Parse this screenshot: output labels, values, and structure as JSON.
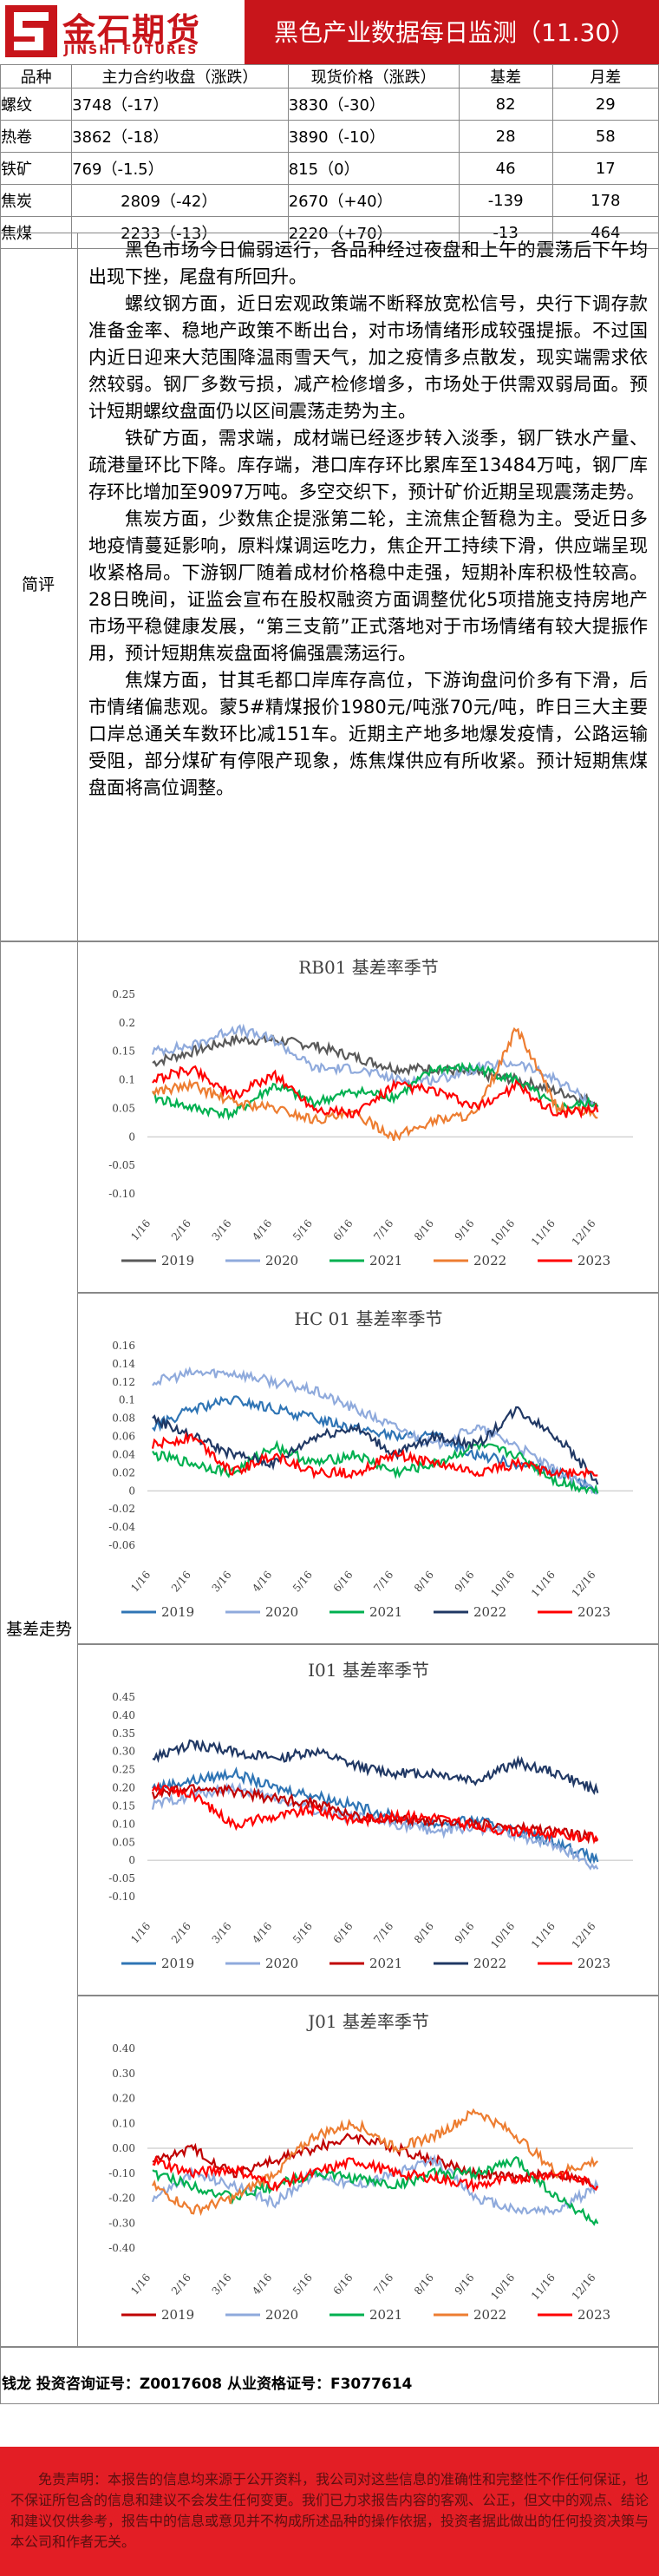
{
  "header": {
    "logo_cn": "金石期货",
    "logo_en": "JINSHI FUTURES",
    "title": "黑色产业数据每日监测（11.30）",
    "brand_color": "#c8151b"
  },
  "table": {
    "headers": [
      "品种",
      "主力合约收盘（涨跌）",
      "现货价格（涨跌）",
      "基差",
      "月差"
    ],
    "rows": [
      {
        "name": "螺纹",
        "futures": "3748（-17）",
        "spot": "3830（-30）",
        "basis": "82",
        "month_spread": "29"
      },
      {
        "name": "热卷",
        "futures": "3862（-18）",
        "spot": "3890（-10）",
        "basis": "28",
        "month_spread": "58"
      },
      {
        "name": "铁矿",
        "futures": "769（-1.5）",
        "spot": "815（0）",
        "basis": "46",
        "month_spread": "17"
      },
      {
        "name": "焦炭",
        "futures": "2809（-42）",
        "spot": "2670（+40）",
        "basis": "-139",
        "month_spread": "178"
      },
      {
        "name": "焦煤",
        "futures": "2233（-13）",
        "spot": "2220（+70）",
        "basis": "-13",
        "month_spread": "464"
      }
    ]
  },
  "comment": {
    "label": "简评",
    "paragraphs": [
      "黑色市场今日偏弱运行，各品种经过夜盘和上午的震荡后下午均出现下挫，尾盘有所回升。",
      "螺纹钢方面，近日宏观政策端不断释放宽松信号，央行下调存款准备金率、稳地产政策不断出台，对市场情绪形成较强提振。不过国内近日迎来大范围降温雨雪天气，加之疫情多点散发，现实端需求依然较弱。钢厂多数亏损，减产检修增多，市场处于供需双弱局面。预计短期螺纹盘面仍以区间震荡走势为主。",
      "铁矿方面，需求端，成材端已经逐步转入淡季，钢厂铁水产量、疏港量环比下降。库存端，港口库存环比累库至13484万吨，钢厂库存环比增加至9097万吨。多空交织下，预计矿价近期呈现震荡走势。",
      "焦炭方面，少数焦企提涨第二轮，主流焦企暂稳为主。受近日多地疫情蔓延影响，原料煤调运吃力，焦企开工持续下滑，供应端呈现收紧格局。下游钢厂随着成材价格稳中走强，短期补库积极性较高。28日晚间，证监会宣布在股权融资方面调整优化5项措施支持房地产市场平稳健康发展，“第三支箭”正式落地对于市场情绪有较大提振作用，预计短期焦炭盘面将偏强震荡运行。",
      "焦煤方面，甘其毛都口岸库存高位，下游询盘问价多有下滑，后市情绪偏悲观。蒙5#精煤报价1980元/吨涨70元/吨，昨日三大主要口岸总通关车数环比减151车。近期主产地多地爆发疫情，公路运输受阻，部分煤矿有停限产现象，炼焦煤供应有所收紧。预计短期焦煤盘面将高位调整。"
    ]
  },
  "basis_section": {
    "label": "基差走势"
  },
  "chart_data": [
    {
      "type": "line",
      "title": "RB01 基差率季节",
      "x": [
        "1/16",
        "2/16",
        "3/16",
        "4/16",
        "5/16",
        "6/16",
        "7/16",
        "8/16",
        "9/16",
        "10/16",
        "11/16",
        "12/16"
      ],
      "yticks": [
        "0.25",
        "0.2",
        "0.15",
        "0.1",
        "0.05",
        "0",
        "-0.05",
        "-0.10"
      ],
      "ylim": [
        -0.1,
        0.25
      ],
      "series": [
        {
          "name": "2019",
          "color": "#595959",
          "values": [
            0.13,
            0.15,
            0.17,
            0.17,
            0.16,
            0.14,
            0.12,
            0.12,
            0.11,
            0.1,
            0.08,
            0.06
          ]
        },
        {
          "name": "2020",
          "color": "#8faadc",
          "values": [
            0.15,
            0.16,
            0.19,
            0.17,
            0.12,
            0.12,
            0.1,
            0.1,
            0.12,
            0.13,
            0.1,
            0.05
          ]
        },
        {
          "name": "2021",
          "color": "#00b050",
          "values": [
            0.07,
            0.05,
            0.04,
            0.09,
            0.06,
            0.08,
            0.07,
            0.12,
            0.12,
            0.1,
            0.05,
            0.06
          ]
        },
        {
          "name": "2022",
          "color": "#ed7d31",
          "values": [
            0.08,
            0.09,
            0.06,
            0.05,
            0.03,
            0.04,
            0.0,
            0.03,
            0.04,
            0.19,
            0.05,
            0.04
          ]
        },
        {
          "name": "2023",
          "color": "#ff0000",
          "values": [
            0.1,
            0.12,
            0.07,
            0.11,
            0.05,
            0.04,
            0.09,
            0.08,
            0.05,
            0.09,
            0.04,
            0.05
          ]
        }
      ]
    },
    {
      "type": "line",
      "title": "HC 01 基差率季节",
      "x": [
        "1/16",
        "2/16",
        "3/16",
        "4/16",
        "5/16",
        "6/16",
        "7/16",
        "8/16",
        "9/16",
        "10/16",
        "11/16",
        "12/16"
      ],
      "yticks": [
        "0.16",
        "0.14",
        "0.12",
        "0.1",
        "0.08",
        "0.06",
        "0.04",
        "0.02",
        "0",
        "-0.02",
        "-0.04",
        "-0.06"
      ],
      "ylim": [
        -0.06,
        0.16
      ],
      "series": [
        {
          "name": "2019",
          "color": "#2f75b5",
          "values": [
            0.07,
            0.09,
            0.1,
            0.09,
            0.08,
            0.07,
            0.06,
            0.06,
            0.04,
            0.03,
            0.02,
            0.0
          ]
        },
        {
          "name": "2020",
          "color": "#8faadc",
          "values": [
            0.12,
            0.13,
            0.13,
            0.12,
            0.11,
            0.09,
            0.07,
            0.05,
            0.07,
            0.05,
            0.02,
            0.0
          ]
        },
        {
          "name": "2021",
          "color": "#00b050",
          "values": [
            0.04,
            0.03,
            0.02,
            0.05,
            0.03,
            0.04,
            0.02,
            0.03,
            0.05,
            0.04,
            0.01,
            0.0
          ]
        },
        {
          "name": "2022",
          "color": "#203864",
          "values": [
            0.08,
            0.06,
            0.04,
            0.03,
            0.06,
            0.07,
            0.04,
            0.06,
            0.05,
            0.09,
            0.06,
            0.01
          ]
        },
        {
          "name": "2023",
          "color": "#ff0000",
          "values": [
            0.05,
            0.06,
            0.02,
            0.04,
            0.02,
            0.02,
            0.04,
            0.03,
            0.02,
            0.03,
            0.02,
            0.02
          ]
        }
      ]
    },
    {
      "type": "line",
      "title": "I01 基差率季节",
      "x": [
        "1/16",
        "2/16",
        "3/16",
        "4/16",
        "5/16",
        "6/16",
        "7/16",
        "8/16",
        "9/16",
        "10/16",
        "11/16",
        "12/16"
      ],
      "yticks": [
        "0.45",
        "0.40",
        "0.35",
        "0.30",
        "0.25",
        "0.20",
        "0.15",
        "0.10",
        "0.05",
        "0",
        "-0.05",
        "-0.10"
      ],
      "ylim": [
        -0.1,
        0.45
      ],
      "series": [
        {
          "name": "2019",
          "color": "#2f75b5",
          "values": [
            0.2,
            0.22,
            0.24,
            0.2,
            0.18,
            0.15,
            0.12,
            0.1,
            0.11,
            0.08,
            0.05,
            0.0
          ]
        },
        {
          "name": "2020",
          "color": "#8faadc",
          "values": [
            0.15,
            0.18,
            0.2,
            0.17,
            0.14,
            0.12,
            0.1,
            0.08,
            0.09,
            0.07,
            0.04,
            -0.02
          ]
        },
        {
          "name": "2021",
          "color": "#c00000",
          "values": [
            0.18,
            0.2,
            0.19,
            0.17,
            0.16,
            0.12,
            0.11,
            0.11,
            0.1,
            0.09,
            0.08,
            0.06
          ]
        },
        {
          "name": "2022",
          "color": "#203864",
          "values": [
            0.28,
            0.32,
            0.3,
            0.28,
            0.3,
            0.26,
            0.24,
            0.24,
            0.22,
            0.27,
            0.24,
            0.19
          ]
        },
        {
          "name": "2023",
          "color": "#ff0000",
          "values": [
            0.2,
            0.18,
            0.1,
            0.12,
            0.14,
            0.11,
            0.12,
            0.12,
            0.09,
            0.08,
            0.07,
            0.06
          ]
        }
      ]
    },
    {
      "type": "line",
      "title": "J01 基差率季节",
      "x": [
        "1/16",
        "2/16",
        "3/16",
        "4/16",
        "5/16",
        "6/16",
        "7/16",
        "8/16",
        "9/16",
        "10/16",
        "11/16",
        "12/16"
      ],
      "yticks": [
        "0.40",
        "0.30",
        "0.20",
        "0.10",
        "0.00",
        "-0.10",
        "-0.20",
        "-0.30",
        "-0.40"
      ],
      "ylim": [
        -0.4,
        0.4
      ],
      "series": [
        {
          "name": "2019",
          "color": "#c00000",
          "values": [
            -0.05,
            0.0,
            -0.1,
            -0.05,
            0.0,
            0.05,
            0.0,
            -0.05,
            -0.1,
            -0.12,
            -0.1,
            -0.15
          ]
        },
        {
          "name": "2020",
          "color": "#8faadc",
          "values": [
            -0.2,
            -0.1,
            -0.15,
            -0.22,
            -0.1,
            -0.15,
            -0.1,
            -0.05,
            -0.2,
            -0.25,
            -0.25,
            -0.15
          ]
        },
        {
          "name": "2021",
          "color": "#00b050",
          "values": [
            -0.1,
            -0.15,
            -0.2,
            -0.15,
            -0.1,
            -0.12,
            -0.15,
            -0.1,
            -0.1,
            -0.05,
            -0.2,
            -0.3
          ]
        },
        {
          "name": "2022",
          "color": "#ed7d31",
          "values": [
            -0.15,
            -0.25,
            -0.2,
            -0.1,
            0.05,
            0.1,
            0.0,
            0.05,
            0.15,
            0.05,
            -0.1,
            -0.05
          ]
        },
        {
          "name": "2023",
          "color": "#ff0000",
          "values": [
            -0.05,
            -0.1,
            -0.08,
            -0.15,
            -0.1,
            -0.05,
            -0.1,
            -0.12,
            -0.15,
            -0.12,
            -0.1,
            -0.15
          ]
        }
      ]
    }
  ],
  "footer": {
    "analyst": "钱龙 投资咨询证号：Z0017608 从业资格证号：F3077614",
    "disclaimer": "免责声明：本报告的信息均来源于公开资料，我公司对这些信息的准确性和完整性不作任何保证，也不保证所包含的信息和建议不会发生任何变更。我们已力求报告内容的客观、公正，但文中的观点、结论和建议仅供参考，报告中的信息或意见并不构成所述品种的操作依据，投资者据此做出的任何投资决策与本公司和作者无关。",
    "disclaimer_color": "#e31e25"
  }
}
